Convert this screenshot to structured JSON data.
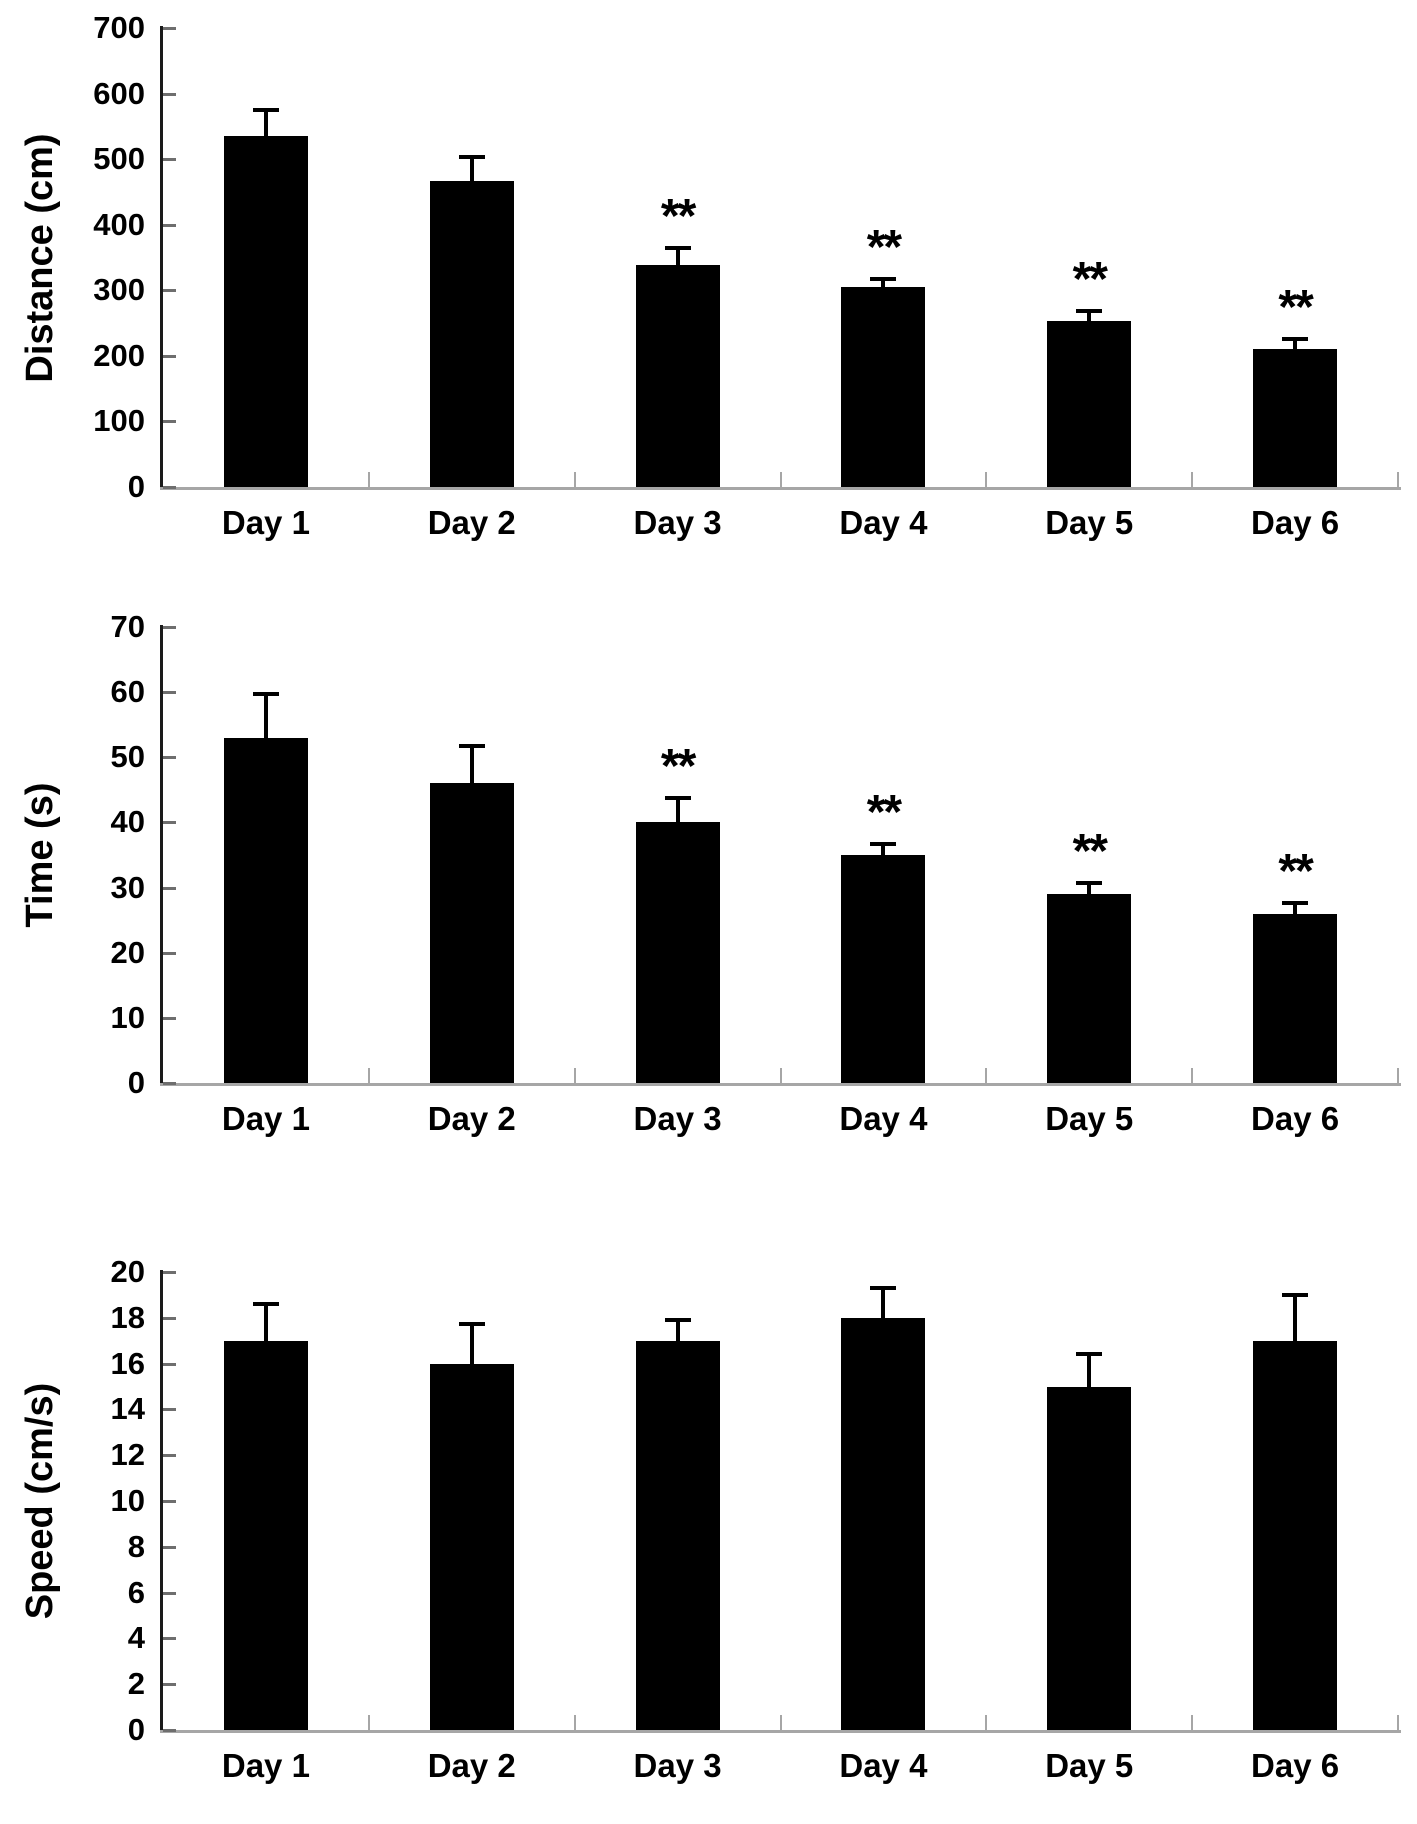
{
  "figure": {
    "background": "#ffffff",
    "bar_color": "#000000",
    "significance_marker": "**"
  },
  "chart_data": [
    {
      "type": "bar",
      "title": "",
      "xlabel": "",
      "ylabel": "Distance (cm)",
      "categories": [
        "Day 1",
        "Day 2",
        "Day 3",
        "Day 4",
        "Day 5",
        "Day 6"
      ],
      "values": [
        535,
        467,
        338,
        305,
        253,
        210
      ],
      "errors_plus": [
        43,
        40,
        30,
        15,
        18,
        18
      ],
      "significance": [
        "",
        "",
        "**",
        "**",
        "**",
        "**"
      ],
      "ylim": [
        0,
        700
      ],
      "yticks": [
        0,
        100,
        200,
        300,
        400,
        500,
        600,
        700
      ],
      "grid": "off",
      "legend": "none"
    },
    {
      "type": "bar",
      "title": "",
      "xlabel": "",
      "ylabel": "Time (s)",
      "categories": [
        "Day 1",
        "Day 2",
        "Day 3",
        "Day 4",
        "Day 5",
        "Day 6"
      ],
      "values": [
        53,
        46,
        40,
        35,
        29,
        26
      ],
      "errors_plus": [
        7,
        6,
        4,
        2,
        2,
        2
      ],
      "significance": [
        "",
        "",
        "**",
        "**",
        "**",
        "**"
      ],
      "ylim": [
        0,
        70
      ],
      "yticks": [
        0,
        10,
        20,
        30,
        40,
        50,
        60,
        70
      ],
      "grid": "off",
      "legend": "none"
    },
    {
      "type": "bar",
      "title": "",
      "xlabel": "",
      "ylabel": "Speed (cm/s)",
      "categories": [
        "Day 1",
        "Day 2",
        "Day 3",
        "Day 4",
        "Day 5",
        "Day 6"
      ],
      "values": [
        17,
        16,
        17,
        18,
        15,
        17
      ],
      "errors_plus": [
        1.7,
        1.8,
        1.0,
        1.4,
        1.5,
        2.1
      ],
      "significance": [
        "",
        "",
        "",
        "",
        "",
        ""
      ],
      "ylim": [
        0,
        20
      ],
      "yticks": [
        0,
        2,
        4,
        6,
        8,
        10,
        12,
        14,
        16,
        18,
        20
      ],
      "grid": "off",
      "legend": "none"
    }
  ]
}
